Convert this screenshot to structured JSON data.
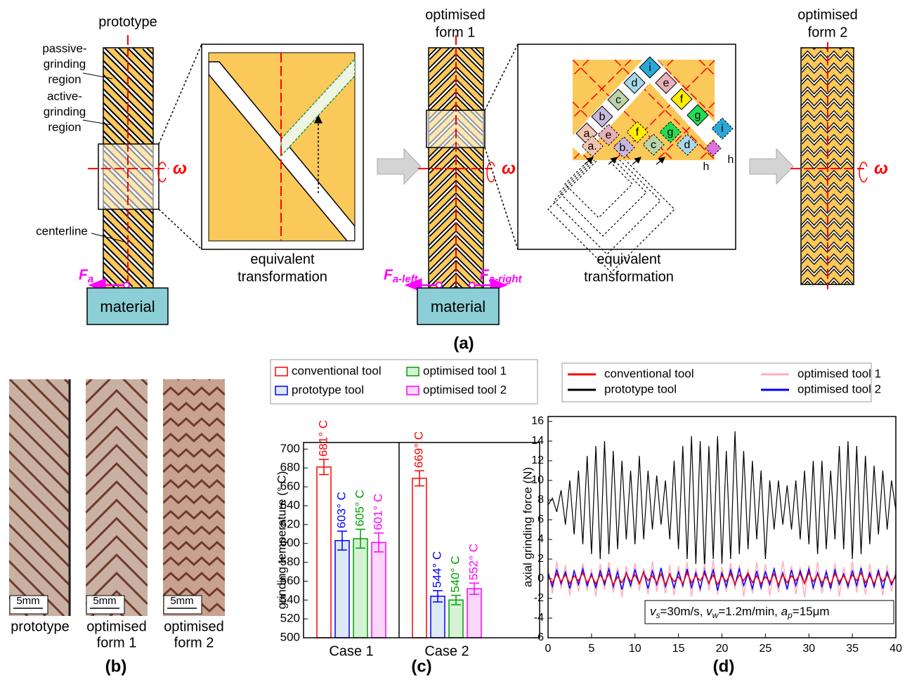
{
  "figure": {
    "panel_a": {
      "label": "(a)",
      "prototype": {
        "title": "prototype",
        "passive_region": [
          "passive-",
          "grinding",
          "region"
        ],
        "active_region": [
          "active-",
          "grinding",
          "region"
        ],
        "centerline": "centerline",
        "rotation": "ω",
        "force": {
          "symbol": "F",
          "sub": "a"
        },
        "material": "material"
      },
      "zoom_1": {
        "caption": [
          "equivalent",
          "transformation"
        ]
      },
      "form_1": {
        "title": [
          "optimised",
          "form 1"
        ],
        "rotation": "ω",
        "force_left": {
          "symbol": "F",
          "sub": "a-left"
        },
        "force_right": {
          "symbol": "F",
          "sub": "a-right"
        },
        "material": "material"
      },
      "zoom_2": {
        "caption": [
          "equivalent",
          "transformation"
        ],
        "cells": [
          "a",
          "b",
          "c",
          "d",
          "i",
          "e",
          "f",
          "g",
          "a.",
          "e",
          "b.",
          "f",
          "c",
          "g",
          "d",
          "i"
        ],
        "outside_labels": [
          "h",
          "h"
        ]
      },
      "form_2": {
        "title": [
          "optimised",
          "form 2"
        ],
        "rotation": "ω"
      }
    },
    "panel_b": {
      "label": "(b)",
      "scale_bars": [
        "5mm",
        "5mm",
        "5mm"
      ],
      "captions": [
        [
          "prototype"
        ],
        [
          "optimised",
          "form 1"
        ],
        [
          "optimised",
          "form 2"
        ]
      ]
    }
  },
  "chart_data": [
    {
      "type": "bar",
      "panel_label": "(c)",
      "ylabel": "grinding temperature (° C)",
      "categories": [
        "Case 1",
        "Case 2"
      ],
      "ylim": [
        500,
        707
      ],
      "yticks": [
        500,
        520,
        540,
        560,
        580,
        600,
        620,
        640,
        660,
        680,
        700
      ],
      "series": [
        {
          "name": "conventional tool",
          "color": "#ff0000",
          "fill": "#ffffff",
          "values": [
            681,
            669
          ],
          "errors": [
            8,
            8
          ],
          "value_labels": [
            "681° C",
            "669° C"
          ]
        },
        {
          "name": "prototype tool",
          "color": "#0000ff",
          "fill": "#dde9f6",
          "values": [
            603,
            544
          ],
          "errors": [
            10,
            6
          ],
          "value_labels": [
            "603° C",
            "544° C"
          ]
        },
        {
          "name": "optimised tool 1",
          "color": "#00a000",
          "fill": "#d6f2d6",
          "values": [
            605,
            540
          ],
          "errors": [
            10,
            5
          ],
          "value_labels": [
            "605° C",
            "540° C"
          ]
        },
        {
          "name": "optimised tool 2",
          "color": "#ff00ff",
          "fill": "#fbd8fb",
          "values": [
            601,
            552
          ],
          "errors": [
            10,
            6
          ],
          "value_labels": [
            "601° C",
            "552° C"
          ]
        }
      ]
    },
    {
      "type": "line",
      "panel_label": "(d)",
      "ylabel": "axial grinding force (N)",
      "xlim": [
        0,
        40
      ],
      "xticks": [
        0,
        5,
        10,
        15,
        20,
        25,
        30,
        35,
        40
      ],
      "ylim": [
        -6,
        16.5
      ],
      "yticks": [
        -6,
        -4,
        -2,
        0,
        2,
        4,
        6,
        8,
        10,
        12,
        14,
        16
      ],
      "annotation": [
        {
          "text": "v",
          "sub": "s",
          "rest": "=30m/s, "
        },
        {
          "text": "v",
          "sub": "w",
          "rest": "=1.2m/min, "
        },
        {
          "text": "a",
          "sub": "p",
          "rest": "=15μm"
        }
      ],
      "x": [
        0,
        0.5,
        1,
        1.5,
        2,
        2.5,
        3,
        3.5,
        4,
        4.5,
        5,
        5.5,
        6,
        6.5,
        7,
        7.5,
        8,
        8.5,
        9,
        9.5,
        10,
        10.5,
        11,
        11.5,
        12,
        12.5,
        13,
        13.5,
        14,
        14.5,
        15,
        15.5,
        16,
        16.5,
        17,
        17.5,
        18,
        18.5,
        19,
        19.5,
        20,
        20.5,
        21,
        21.5,
        22,
        22.5,
        23,
        23.5,
        24,
        24.5,
        25,
        25.5,
        26,
        26.5,
        27,
        27.5,
        28,
        28.5,
        29,
        29.5,
        30,
        30.5,
        31,
        31.5,
        32,
        32.5,
        33,
        33.5,
        34,
        34.5,
        35,
        35.5,
        36,
        36.5,
        37,
        37.5,
        38,
        38.5,
        39,
        39.5,
        40
      ],
      "series": [
        {
          "name": "conventional tool",
          "color": "#ff0000",
          "values": [
            0.2,
            -0.4,
            0.5,
            -0.3,
            0.4,
            -0.5,
            0.3,
            -0.2,
            0.6,
            -0.4,
            0.3,
            -0.5,
            0.4,
            -0.3,
            0.5,
            -0.6,
            0.2,
            -0.4,
            0.5,
            -0.3,
            0.4,
            -0.5,
            0.6,
            -0.2,
            0.3,
            -0.4,
            0.5,
            -0.6,
            0.4,
            -0.3,
            0.2,
            -0.5,
            0.6,
            -0.4,
            0.3,
            -0.2,
            0.5,
            -0.4,
            0.4,
            -0.6,
            0.3,
            -0.3,
            0.5,
            -0.5,
            0.4,
            -0.2,
            0.6,
            -0.4,
            0.3,
            -0.5,
            0.2,
            -0.3,
            0.5,
            -0.6,
            0.4,
            -0.4,
            0.3,
            -0.2,
            0.5,
            -0.5,
            0.6,
            -0.3,
            0.4,
            -0.4,
            0.2,
            -0.6,
            0.5,
            -0.3,
            0.3,
            -0.5,
            0.4,
            -0.2,
            0.6,
            -0.4,
            0.3,
            -0.5,
            0.5,
            -0.3,
            0.4,
            -0.4,
            0.2
          ]
        },
        {
          "name": "prototype tool",
          "color": "#000000",
          "values": [
            7.5,
            8.2,
            6.8,
            9,
            5.5,
            10,
            4.5,
            11,
            3.5,
            12.5,
            2.5,
            13.5,
            2,
            14,
            2.5,
            13,
            3,
            12,
            4,
            11,
            3.5,
            12.5,
            4,
            11,
            5,
            10.5,
            5.5,
            10,
            4,
            12,
            3,
            13.5,
            2,
            14.5,
            1.5,
            14,
            1,
            13.5,
            2,
            14.5,
            1.5,
            13,
            2,
            15,
            2.5,
            13,
            3,
            12,
            4,
            11,
            2,
            10,
            5,
            10,
            5.5,
            9.5,
            5,
            10,
            4,
            11,
            3.5,
            12,
            2.5,
            12,
            3,
            11,
            4,
            13.5,
            3,
            14,
            2,
            13.5,
            2.5,
            12.5,
            3.5,
            11.5,
            4.5,
            11,
            5,
            10,
            7
          ]
        },
        {
          "name": "optimised tool 1",
          "color": "#ffb0bc",
          "values": [
            1.2,
            -1.5,
            1.8,
            -1.0,
            1.4,
            -1.7,
            0.9,
            -1.3,
            1.6,
            -1.2,
            1.0,
            -1.8,
            1.5,
            -1.1,
            1.7,
            -1.4,
            1.2,
            -1.9,
            1.3,
            -1.0,
            1.6,
            -1.2,
            1.1,
            -1.6,
            1.8,
            -1.3,
            1.0,
            -1.5,
            1.4,
            -1.7,
            1.3,
            -1.0,
            1.7,
            -1.8,
            1.1,
            -1.4,
            1.5,
            -1.2,
            1.9,
            -1.6,
            1.2,
            -1.3,
            1.6,
            -1.1,
            1.4,
            -1.8,
            1.0,
            -1.5,
            1.7,
            -1.2,
            1.5,
            -1.7,
            1.1,
            -1.4,
            1.8,
            -1.0,
            1.3,
            -1.6,
            1.2,
            -1.9,
            1.4,
            -1.2,
            1.7,
            -1.5,
            1.0,
            -1.3,
            1.6,
            -1.8,
            1.2,
            -1.1,
            1.8,
            -1.4,
            1.3,
            -1.6,
            1.5,
            -1.0,
            1.1,
            -1.7,
            1.4,
            -1.3,
            1.0
          ]
        },
        {
          "name": "optimised tool 2",
          "color": "#0000ff",
          "values": [
            0.6,
            -0.8,
            0.9,
            -0.5,
            0.7,
            -1.0,
            0.8,
            -0.6,
            1.0,
            -0.7,
            0.5,
            -0.9,
            0.8,
            -0.6,
            1.0,
            -0.8,
            0.7,
            -1.1,
            0.6,
            -0.7,
            0.9,
            -0.5,
            0.7,
            -1.0,
            0.8,
            -0.6,
            1.1,
            -0.8,
            0.5,
            -0.9,
            0.7,
            -0.7,
            1.0,
            -0.9,
            0.6,
            -1.0,
            0.8,
            -0.5,
            0.9,
            -1.2,
            0.6,
            -0.8,
            0.9,
            -0.6,
            1.0,
            -0.7,
            0.5,
            -1.0,
            0.8,
            -0.9,
            0.7,
            -0.6,
            1.0,
            -0.8,
            0.6,
            -1.1,
            0.9,
            -0.7,
            0.8,
            -0.5,
            1.0,
            -0.9,
            0.6,
            -0.8,
            0.7,
            -1.0,
            0.9,
            -0.6,
            0.5,
            -0.8,
            0.8,
            -0.7,
            1.1,
            -0.9,
            0.6,
            -0.8,
            0.9,
            -1.0,
            0.7,
            -0.6,
            0.4
          ]
        }
      ]
    }
  ]
}
